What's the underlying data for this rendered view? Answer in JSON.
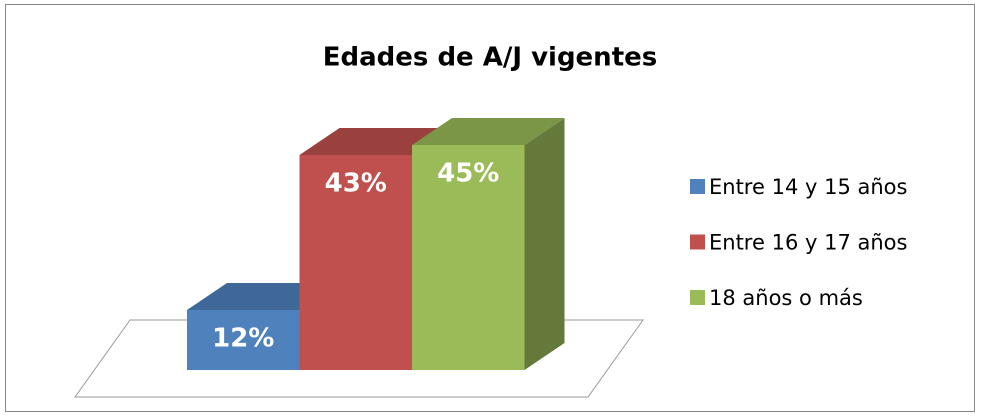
{
  "chart_data": {
    "type": "bar3d",
    "title": "Edades de A/J vigentes",
    "series": [
      {
        "name": "Entre 14 y 15 años",
        "color": "#4f81bd",
        "values": [
          12
        ],
        "value_labels": [
          "12%"
        ]
      },
      {
        "name": "Entre 16  y 17 años",
        "color": "#c0504d",
        "values": [
          43
        ],
        "value_labels": [
          "43%"
        ]
      },
      {
        "name": "18 años o más",
        "color": "#9bbb59",
        "values": [
          45
        ],
        "value_labels": [
          "45%"
        ]
      }
    ],
    "legend": "right"
  }
}
